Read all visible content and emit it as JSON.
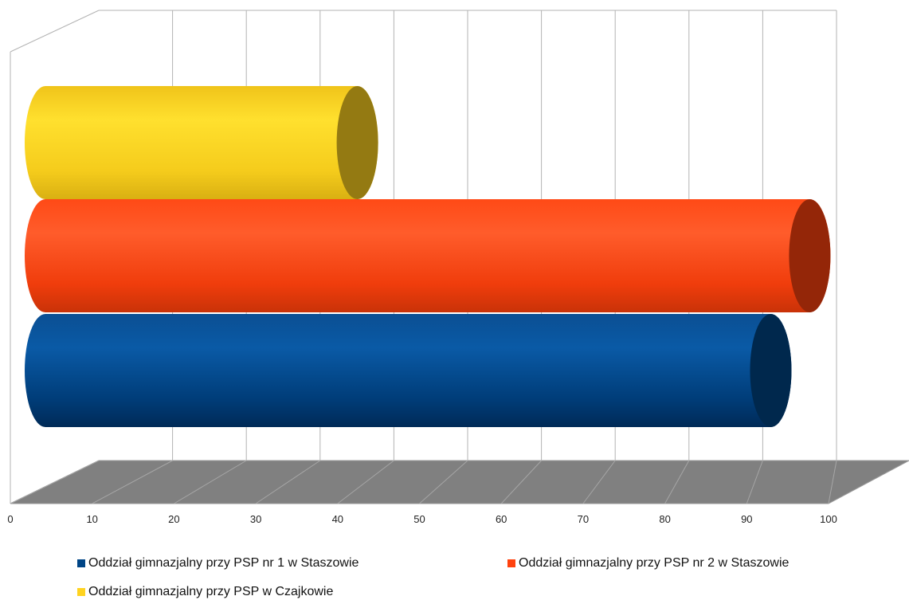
{
  "chart_data": {
    "type": "bar",
    "orientation": "horizontal",
    "style": "3d-cylinder",
    "xlim": [
      0,
      100
    ],
    "x_ticks": [
      "0",
      "10",
      "20",
      "30",
      "40",
      "50",
      "60",
      "70",
      "80",
      "90",
      "100"
    ],
    "grid": true,
    "legend_position": "bottom",
    "title": "",
    "xlabel": "",
    "ylabel": "",
    "series": [
      {
        "name": "Oddział gimnazjalny przy PSP nr 1 w Staszowie",
        "value": 93,
        "color": "#004586"
      },
      {
        "name": "Oddział gimnazjalny przy PSP nr 2 w Staszowie",
        "value": 98,
        "color": "#ff420e"
      },
      {
        "name": "Oddział gimnazjalny przy PSP w Czajkowie",
        "value": 40,
        "color": "#ffd320"
      }
    ]
  }
}
